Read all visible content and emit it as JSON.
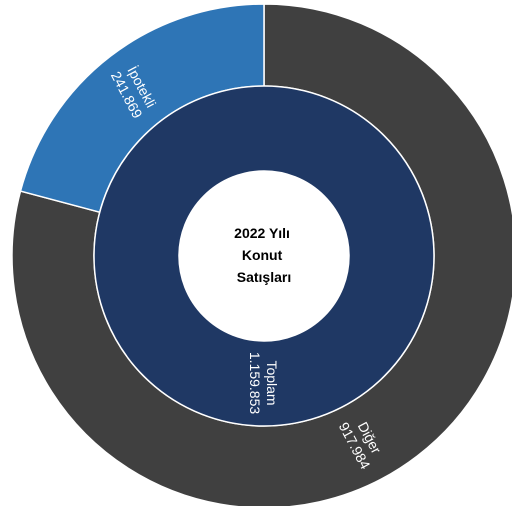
{
  "chart_data": {
    "type": "pie",
    "subtype": "sunburst",
    "center_label": [
      "2022 Yılı",
      "Konut",
      "Satışları"
    ],
    "rings": [
      {
        "name": "inner",
        "slices": [
          {
            "label": "Toplam",
            "value_text": "1.159.853",
            "value": 1159853,
            "color": "#1f3864"
          }
        ]
      },
      {
        "name": "outer",
        "slices": [
          {
            "label": "Diğer",
            "value_text": "917.984",
            "value": 917984,
            "color": "#404040"
          },
          {
            "label": "İpotekli",
            "value_text": "241.869",
            "value": 241869,
            "color": "#2e75b6"
          }
        ]
      }
    ],
    "legend": "none"
  }
}
